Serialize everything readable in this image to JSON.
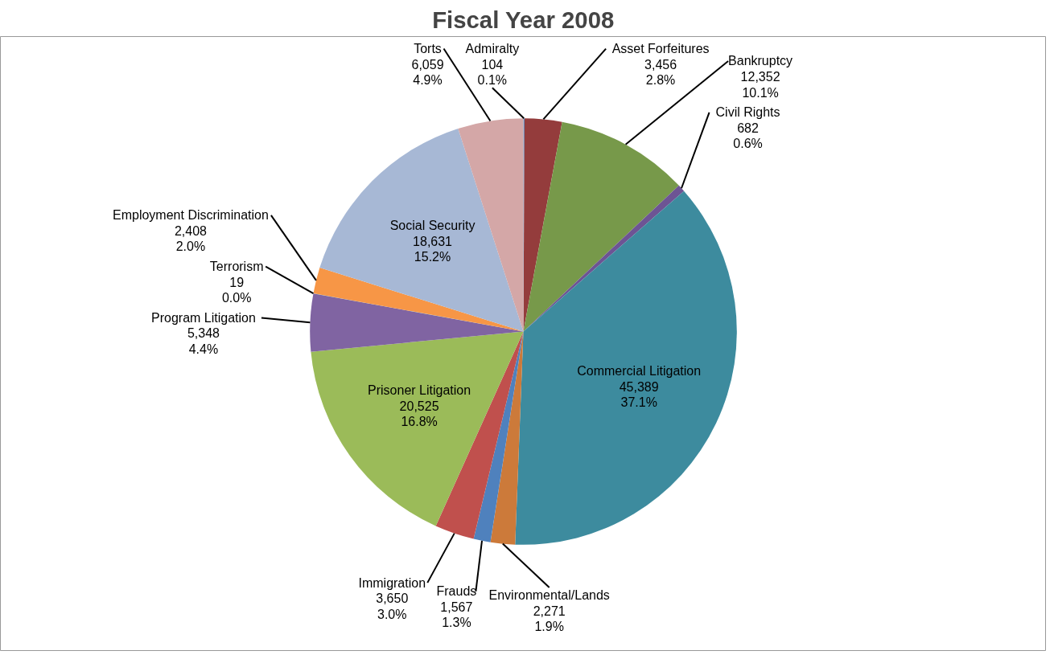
{
  "chart_data": {
    "type": "pie",
    "title": "Fiscal Year 2008",
    "categories": [
      "Admiralty",
      "Asset Forfeitures",
      "Bankruptcy",
      "Civil Rights",
      "Commercial Litigation",
      "Environmental/Lands",
      "Frauds",
      "Immigration",
      "Prisoner Litigation",
      "Program Litigation",
      "Terrorism",
      "Employment Discrimination",
      "Social Security",
      "Torts"
    ],
    "values": [
      104,
      3456,
      12352,
      682,
      45389,
      2271,
      1567,
      3650,
      20525,
      5348,
      19,
      2408,
      18631,
      6059
    ],
    "colors": [
      "#4f81bd",
      "#943c3c",
      "#77994a",
      "#6d5494",
      "#3d8b9e",
      "#cc7a3a",
      "#4f81bd",
      "#c0504d",
      "#9bbb59",
      "#8064a2",
      "#4bacc6",
      "#f79646",
      "#a7b8d5",
      "#d4a7a7"
    ],
    "value_labels": [
      "104\n0.1%",
      "3,456\n2.8%",
      "12,352\n10.1%",
      "682\n0.6%",
      "45,389\n37.1%",
      "2,271\n1.9%",
      "1,567\n1.3%",
      "3,650\n3.0%",
      "20,525\n16.8%",
      "5,348\n4.4%",
      "19\n0.0%",
      "2,408\n2.0%",
      "18,631\n15.2%",
      "6,059\n4.9%"
    ]
  }
}
